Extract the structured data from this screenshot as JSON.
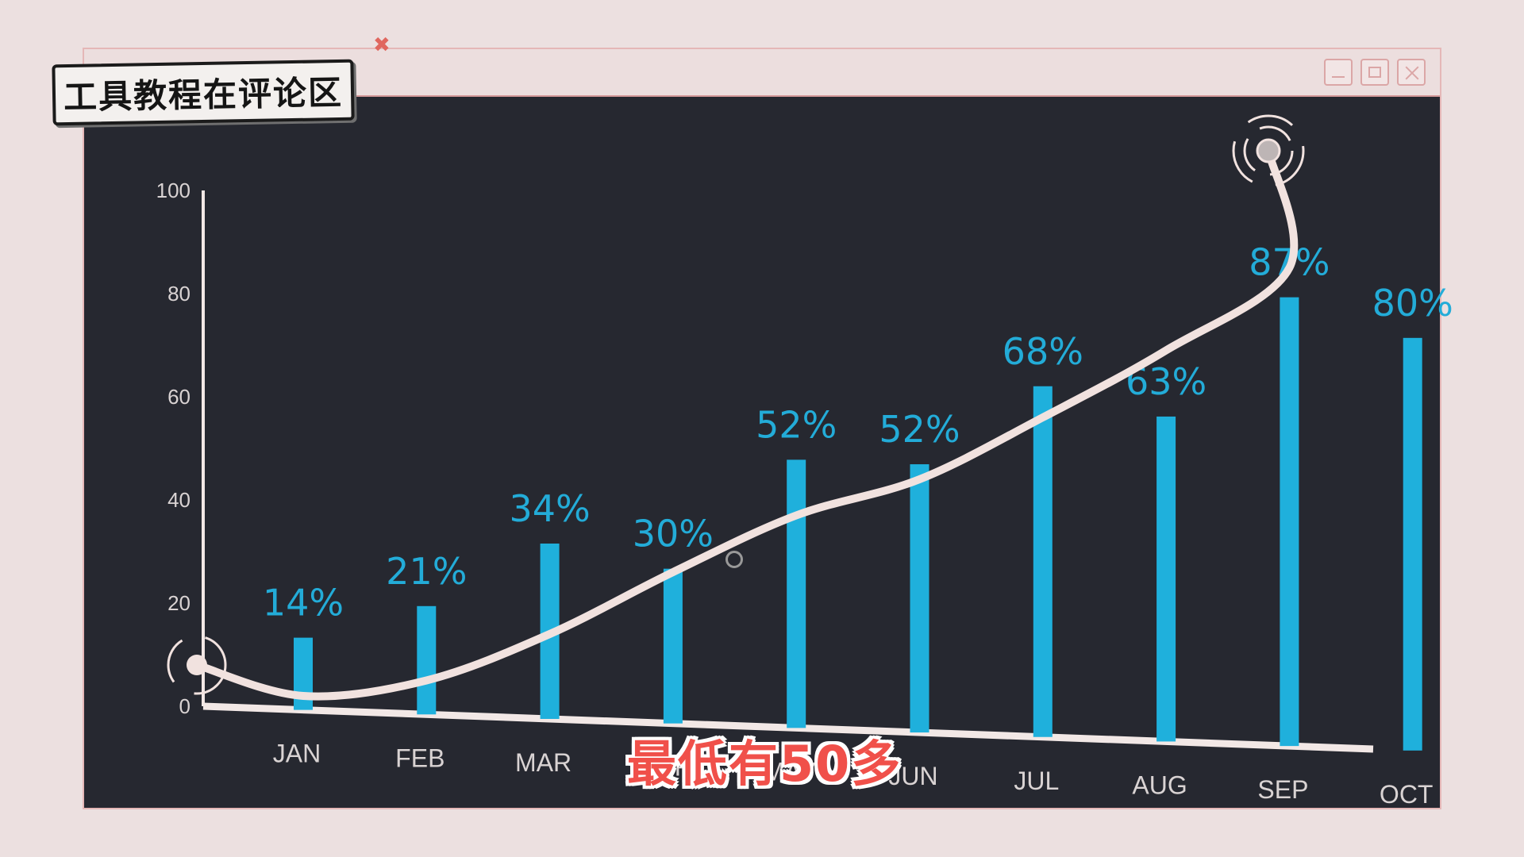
{
  "window": {
    "controls": [
      "minimize",
      "maximize",
      "close"
    ]
  },
  "overlay": {
    "tag_text": "工具教程在评论区",
    "subtitle": "最低有50多"
  },
  "colors": {
    "bar": "#1fb0dc",
    "label": "#23acd8",
    "curve": "#f1e2df",
    "axis": "#f2e8e6",
    "tick_text": "#d9d3d3",
    "subtitle": "#f0504a"
  },
  "chart_data": {
    "type": "bar",
    "title": "",
    "xlabel": "",
    "ylabel": "",
    "ylim": [
      0,
      100
    ],
    "yticks": [
      "0",
      "20",
      "40",
      "60",
      "80",
      "100"
    ],
    "categories": [
      "JAN",
      "FEB",
      "MAR",
      "APR",
      "MAY",
      "JUN",
      "JUL",
      "AUG",
      "SEP",
      "OCT"
    ],
    "values": [
      14,
      21,
      34,
      30,
      52,
      52,
      68,
      63,
      87,
      80
    ],
    "data_labels": [
      "14%",
      "21%",
      "34%",
      "30%",
      "52%",
      "52%",
      "68%",
      "63%",
      "87%",
      "80%"
    ],
    "trend_line": {
      "values": [
        2,
        5,
        14,
        26,
        37,
        44,
        56,
        69,
        85,
        105
      ]
    },
    "grid": false
  }
}
